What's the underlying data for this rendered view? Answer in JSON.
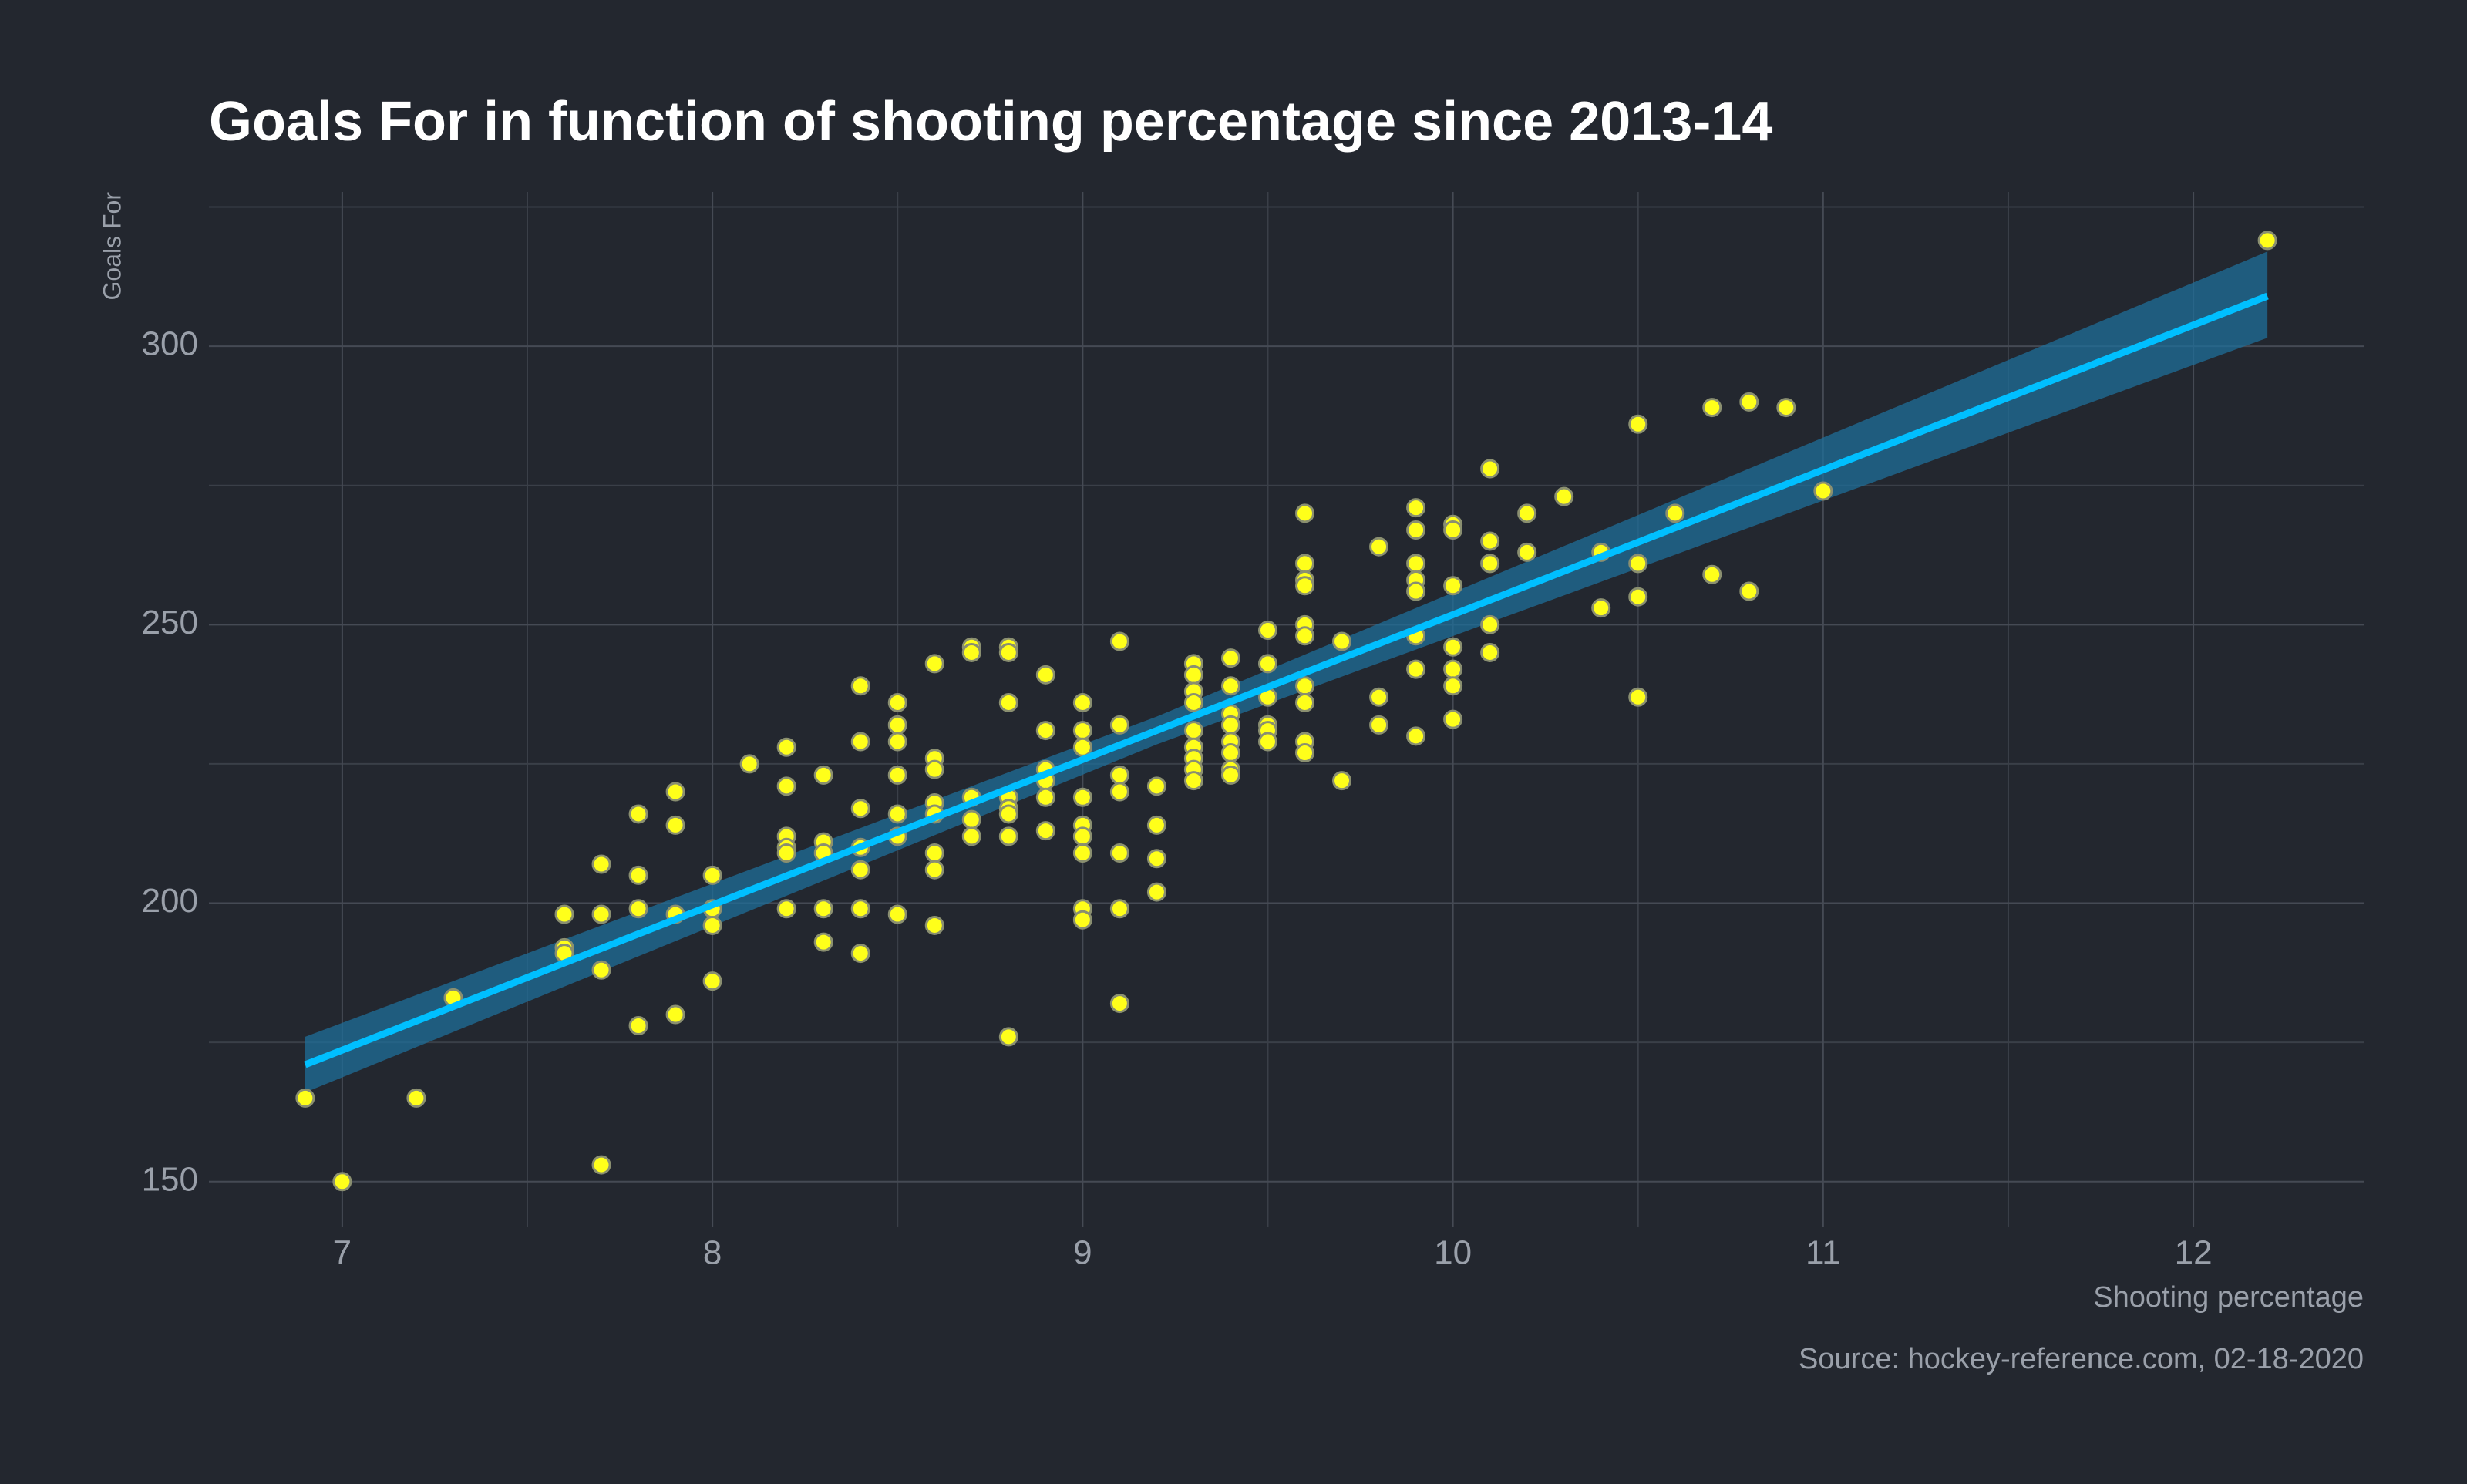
{
  "chart_data": {
    "type": "scatter",
    "title": "Goals For in function of shooting percentage since 2013-14",
    "x_label": "Shooting percentage",
    "y_label": "Goals For",
    "source": "Source: hockey-reference.com, 02-18-2020",
    "xlim": [
      6.64,
      12.46
    ],
    "ylim": [
      141.8,
      327.7
    ],
    "xticks": [
      7,
      8,
      9,
      10,
      11,
      12
    ],
    "yticks": [
      150,
      200,
      250,
      300
    ],
    "x_minor_grid": [
      7.5,
      8.5,
      9.5,
      10.5,
      11.5
    ],
    "y_minor_grid": [
      175,
      225,
      275,
      325
    ],
    "grid": true,
    "color": "#ffff1a",
    "x": [
      6.9,
      7.0,
      7.2,
      7.3,
      7.6,
      7.6,
      7.6,
      7.7,
      7.7,
      7.7,
      7.7,
      7.8,
      7.8,
      7.8,
      7.8,
      7.9,
      7.9,
      7.9,
      7.9,
      8.0,
      8.0,
      8.0,
      8.0,
      8.1,
      8.2,
      8.2,
      8.2,
      8.2,
      8.2,
      8.2,
      8.3,
      8.3,
      8.3,
      8.3,
      8.3,
      8.4,
      8.4,
      8.4,
      8.4,
      8.4,
      8.4,
      8.4,
      8.5,
      8.5,
      8.5,
      8.5,
      8.5,
      8.5,
      8.5,
      8.6,
      8.6,
      8.6,
      8.6,
      8.6,
      8.6,
      8.6,
      8.6,
      8.7,
      8.7,
      8.7,
      8.7,
      8.7,
      8.8,
      8.8,
      8.8,
      8.8,
      8.8,
      8.8,
      8.8,
      8.8,
      8.9,
      8.9,
      8.9,
      8.9,
      8.9,
      8.9,
      9.0,
      9.0,
      9.0,
      9.0,
      9.0,
      9.0,
      9.0,
      9.0,
      9.0,
      9.1,
      9.1,
      9.1,
      9.1,
      9.1,
      9.1,
      9.1,
      9.2,
      9.2,
      9.2,
      9.2,
      9.3,
      9.3,
      9.3,
      9.3,
      9.3,
      9.3,
      9.3,
      9.3,
      9.3,
      9.4,
      9.4,
      9.4,
      9.4,
      9.4,
      9.4,
      9.4,
      9.4,
      9.5,
      9.5,
      9.5,
      9.5,
      9.5,
      9.5,
      9.6,
      9.6,
      9.6,
      9.6,
      9.6,
      9.6,
      9.6,
      9.6,
      9.6,
      9.6,
      9.7,
      9.7,
      9.8,
      9.8,
      9.8,
      9.9,
      9.9,
      9.9,
      9.9,
      9.9,
      9.9,
      9.9,
      9.9,
      10.0,
      10.0,
      10.0,
      10.0,
      10.0,
      10.0,
      10.0,
      10.1,
      10.1,
      10.1,
      10.1,
      10.1,
      10.2,
      10.2,
      10.3,
      10.4,
      10.4,
      10.5,
      10.5,
      10.5,
      10.5,
      10.6,
      10.7,
      10.7,
      10.8,
      10.8,
      10.9,
      11.0,
      12.2
    ],
    "values": [
      165,
      150,
      165,
      183,
      198,
      192,
      191,
      207,
      198,
      188,
      153,
      216,
      205,
      199,
      178,
      220,
      214,
      198,
      180,
      205,
      199,
      196,
      186,
      225,
      228,
      221,
      212,
      210,
      209,
      199,
      223,
      211,
      209,
      199,
      193,
      239,
      229,
      217,
      210,
      206,
      199,
      191,
      236,
      232,
      229,
      223,
      216,
      212,
      198,
      243,
      226,
      224,
      218,
      216,
      209,
      206,
      196,
      246,
      245,
      219,
      215,
      212,
      246,
      245,
      236,
      219,
      217,
      216,
      212,
      176,
      241,
      231,
      224,
      222,
      219,
      213,
      236,
      231,
      228,
      219,
      214,
      212,
      209,
      199,
      197,
      247,
      232,
      223,
      220,
      209,
      199,
      182,
      221,
      214,
      208,
      202,
      243,
      241,
      238,
      236,
      231,
      228,
      226,
      224,
      222,
      244,
      239,
      234,
      232,
      229,
      227,
      224,
      223,
      249,
      243,
      237,
      232,
      231,
      229,
      270,
      261,
      258,
      257,
      250,
      248,
      239,
      236,
      229,
      227,
      247,
      222,
      264,
      237,
      232,
      271,
      267,
      261,
      258,
      256,
      248,
      242,
      230,
      268,
      267,
      257,
      246,
      242,
      239,
      233,
      278,
      265,
      261,
      250,
      245,
      270,
      263,
      273,
      263,
      253,
      286,
      261,
      255,
      237,
      270,
      289,
      259,
      290,
      256,
      289,
      274,
      319
    ],
    "fit": {
      "color": "#00bfff",
      "band_color": "#1f6f99",
      "x": [
        6.9,
        9.2,
        12.2
      ],
      "values": [
        171,
        231,
        309
      ],
      "lower": [
        166,
        228.5,
        301.5
      ],
      "upper": [
        176,
        233.5,
        317
      ]
    }
  }
}
